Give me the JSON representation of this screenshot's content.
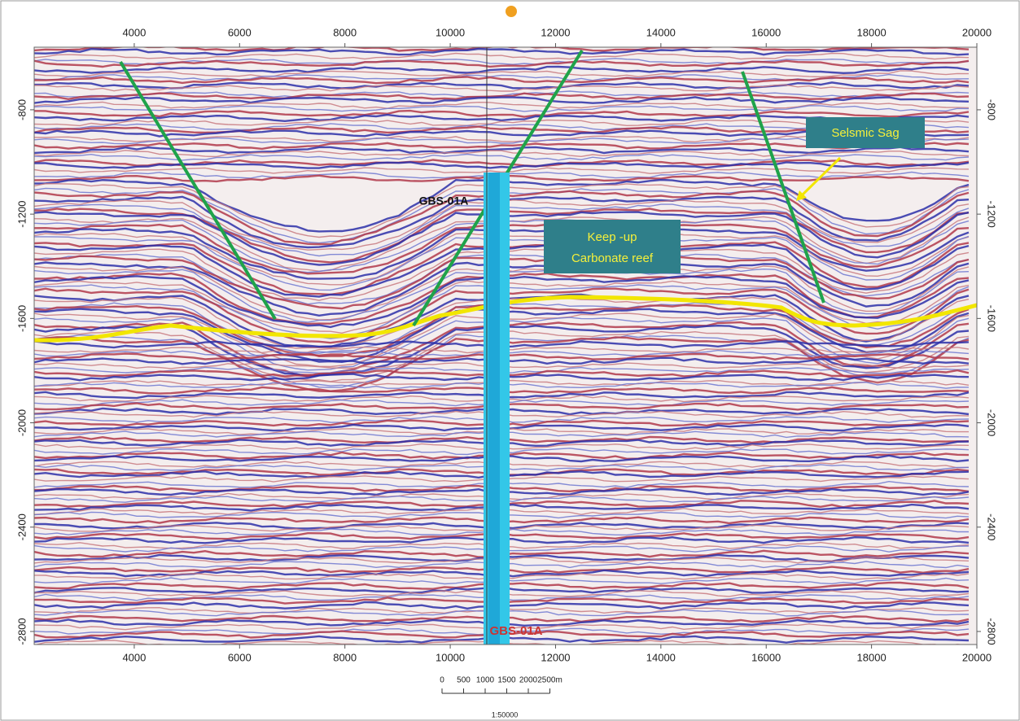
{
  "chart_data": {
    "type": "seismic-section",
    "xlim": [
      2100,
      20000
    ],
    "ylim": [
      -2850,
      -560
    ],
    "xticks": [
      4000,
      6000,
      8000,
      10000,
      12000,
      14000,
      16000,
      18000,
      20000
    ],
    "yticks": [
      -800,
      -1200,
      -1600,
      -2000,
      -2400,
      -2800
    ],
    "annotations": {
      "sag": "Selsmic Sag",
      "reef_1": "Keep -up",
      "reef_2": "Carbonate reef",
      "well_top": "GBS-01A",
      "well_bottom": "GBS-01A"
    },
    "scale_bar": {
      "labels": [
        "0",
        "500",
        "1000",
        "1500",
        "2000",
        "2500m"
      ],
      "ratio": "1:50000"
    }
  }
}
